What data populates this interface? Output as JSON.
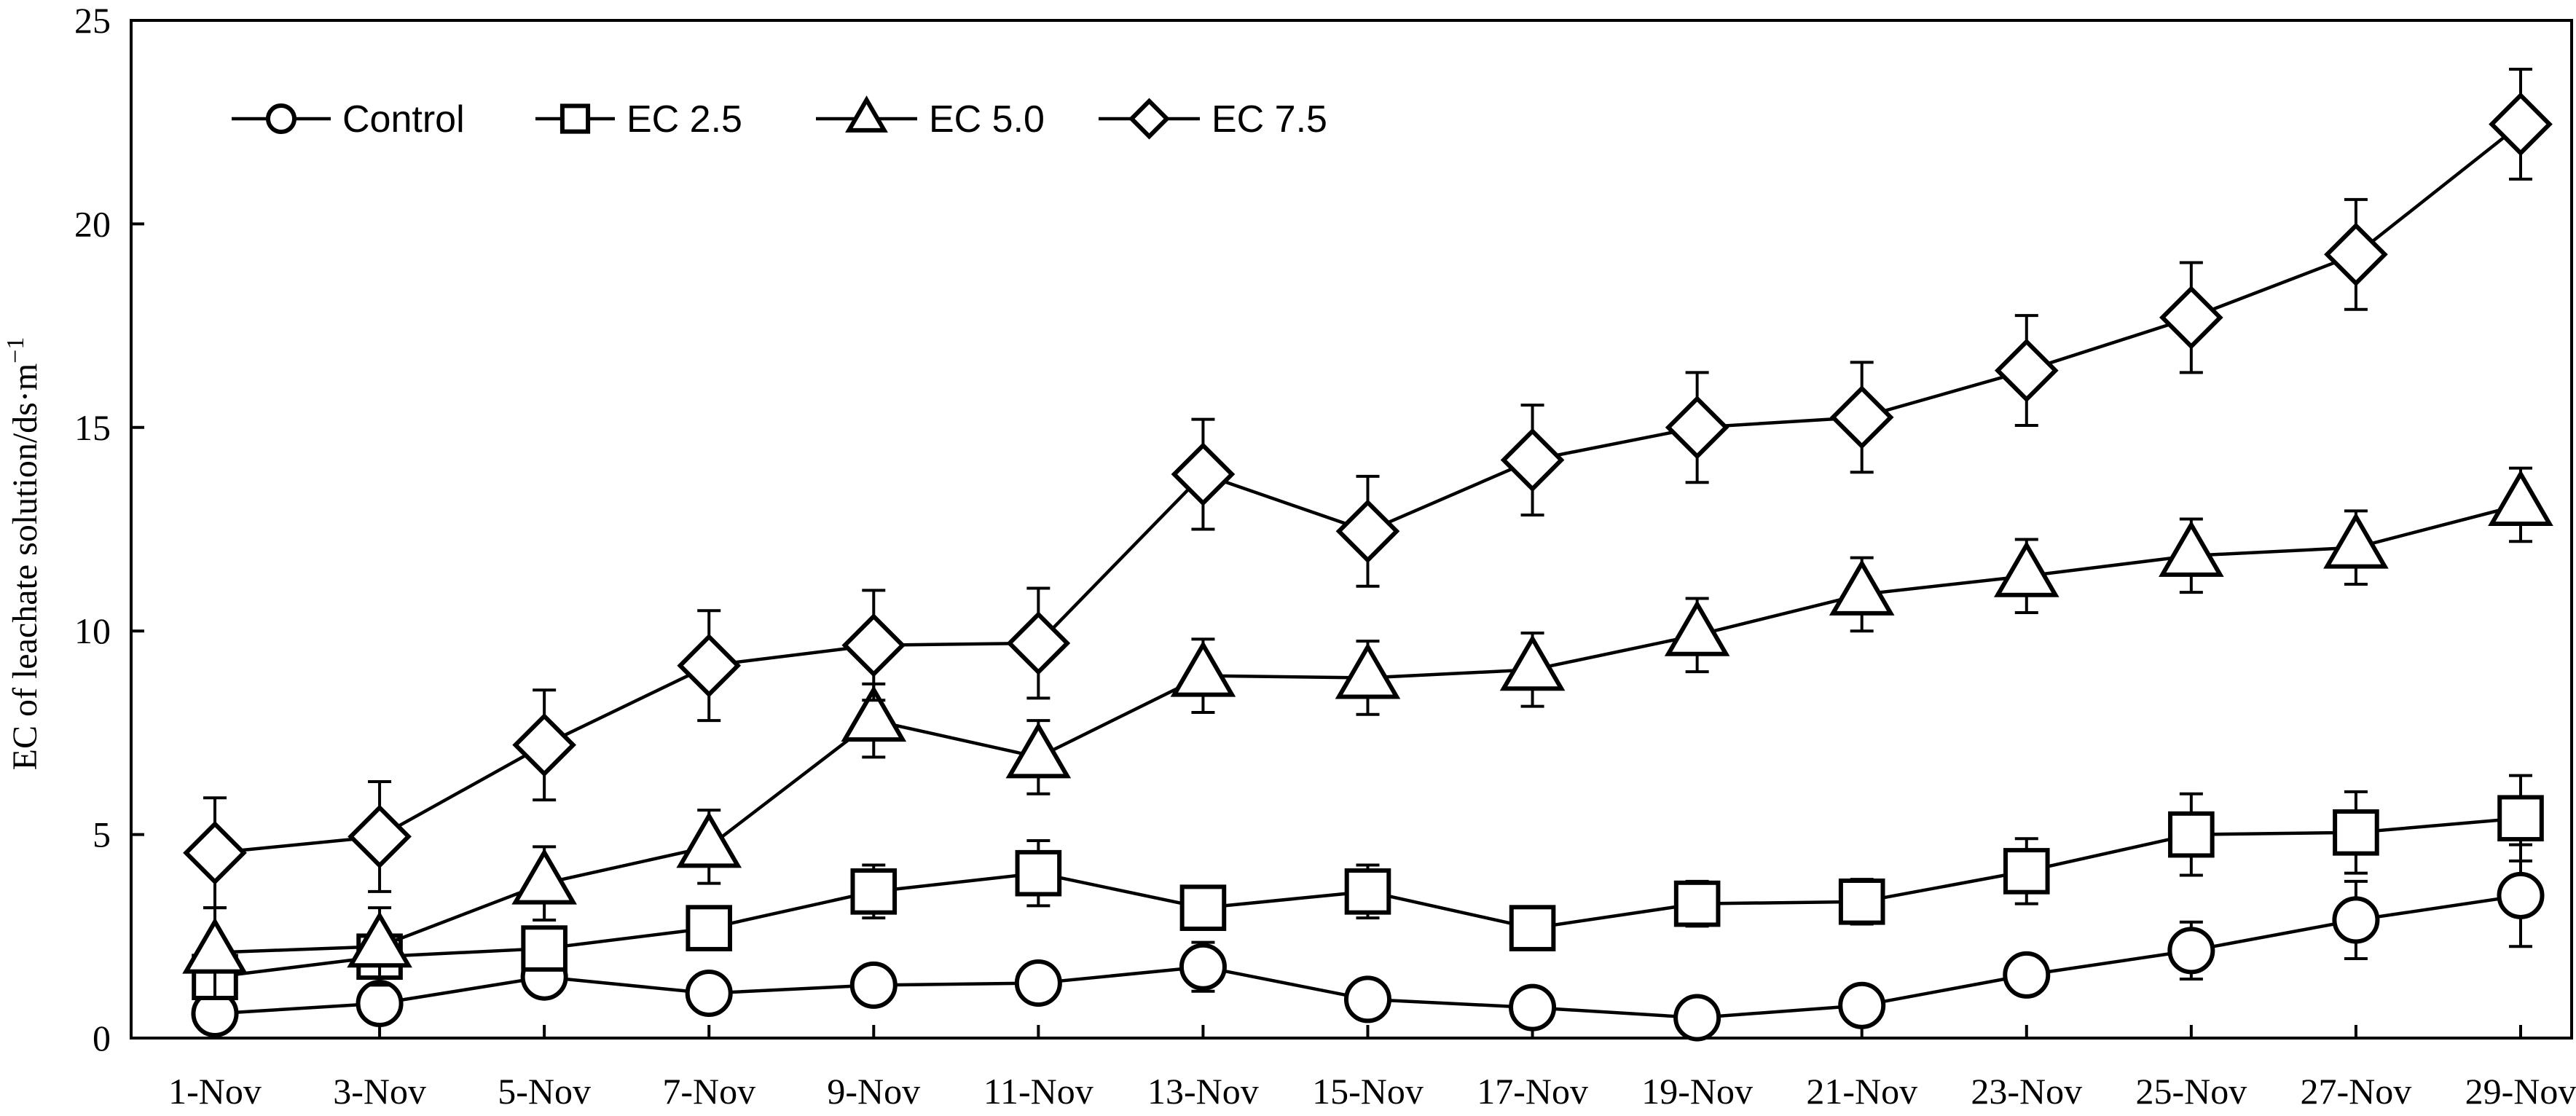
{
  "chart_data": {
    "type": "line",
    "title": "",
    "xlabel": "",
    "ylabel": "EC of leachate solution/ds·m",
    "ylabel_superscript": "−1",
    "ylim": [
      0,
      25
    ],
    "yticks": [
      0,
      5,
      10,
      15,
      20,
      25
    ],
    "grid": false,
    "legend_position": "top-left",
    "x": [
      "1-Nov",
      "3-Nov",
      "5-Nov",
      "7-Nov",
      "9-Nov",
      "11-Nov",
      "13-Nov",
      "15-Nov",
      "17-Nov",
      "19-Nov",
      "21-Nov",
      "23-Nov",
      "25-Nov",
      "27-Nov",
      "29-Nov"
    ],
    "series": [
      {
        "name": "Control",
        "marker": "circle",
        "values": [
          0.6,
          0.85,
          1.5,
          1.1,
          1.3,
          1.35,
          1.75,
          0.95,
          0.75,
          0.5,
          0.8,
          1.55,
          2.15,
          2.9,
          3.5
        ],
        "errors": [
          0.3,
          0.3,
          0.3,
          0.3,
          0.3,
          0.3,
          0.6,
          0.3,
          0.3,
          0.3,
          0.3,
          0.4,
          0.7,
          0.95,
          1.25
        ]
      },
      {
        "name": "EC 2.5",
        "marker": "square",
        "values": [
          1.5,
          2.0,
          2.2,
          2.7,
          3.6,
          4.05,
          3.2,
          3.6,
          2.7,
          3.3,
          3.35,
          4.1,
          5.0,
          5.05,
          5.4
        ],
        "errors": [
          0.35,
          0.4,
          0.5,
          0.4,
          0.65,
          0.8,
          0.4,
          0.65,
          0.3,
          0.55,
          0.55,
          0.8,
          1.0,
          1.0,
          1.05
        ]
      },
      {
        "name": "EC 5.0",
        "marker": "triangle",
        "values": [
          2.1,
          2.25,
          3.8,
          4.7,
          7.8,
          6.9,
          8.9,
          8.85,
          9.05,
          9.9,
          10.9,
          11.35,
          11.85,
          12.05,
          13.1
        ],
        "errors": [
          1.1,
          0.95,
          0.9,
          0.9,
          0.9,
          0.9,
          0.9,
          0.9,
          0.9,
          0.9,
          0.9,
          0.9,
          0.9,
          0.9,
          0.9
        ]
      },
      {
        "name": "EC 7.5",
        "marker": "diamond",
        "values": [
          4.55,
          4.95,
          7.2,
          9.15,
          9.65,
          9.7,
          13.85,
          12.45,
          14.2,
          15.0,
          15.25,
          16.4,
          17.7,
          19.25,
          22.45
        ],
        "errors": [
          1.35,
          1.35,
          1.35,
          1.35,
          1.35,
          1.35,
          1.35,
          1.35,
          1.35,
          1.35,
          1.35,
          1.35,
          1.35,
          1.35,
          1.35
        ]
      }
    ]
  }
}
